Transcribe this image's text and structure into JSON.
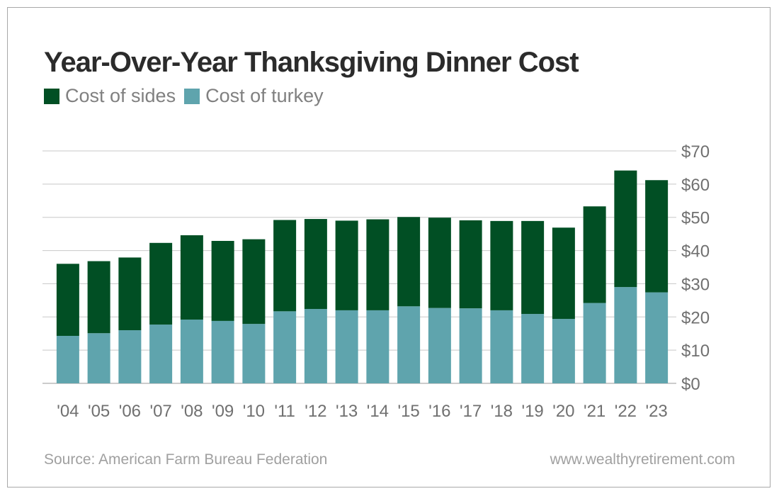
{
  "chart_data": {
    "type": "bar",
    "stacked": true,
    "title": "Year-Over-Year Thanksgiving Dinner Cost",
    "categories": [
      "'04",
      "'05",
      "'06",
      "'07",
      "'08",
      "'09",
      "'10",
      "'11",
      "'12",
      "'13",
      "'14",
      "'15",
      "'16",
      "'17",
      "'18",
      "'19",
      "'20",
      "'21",
      "'22",
      "'23"
    ],
    "series": [
      {
        "name": "Cost of turkey",
        "color": "#5fa4ad",
        "values": [
          14.3,
          15.1,
          16.0,
          17.7,
          19.2,
          18.8,
          17.9,
          21.7,
          22.4,
          22.0,
          22.0,
          23.2,
          22.7,
          22.6,
          22.0,
          20.9,
          19.4,
          24.2,
          29.0,
          27.4
        ]
      },
      {
        "name": "Cost of sides",
        "color": "#014f24",
        "values": [
          21.7,
          21.7,
          21.9,
          24.6,
          25.4,
          24.1,
          25.5,
          27.5,
          27.1,
          27.0,
          27.4,
          26.9,
          27.2,
          26.5,
          26.9,
          28.0,
          27.5,
          29.1,
          35.1,
          33.8
        ]
      }
    ],
    "legend_order": [
      "Cost of sides",
      "Cost of turkey"
    ],
    "ylim": [
      0,
      70
    ],
    "yticks": [
      "$0",
      "$10",
      "$20",
      "$30",
      "$40",
      "$50",
      "$60",
      "$70"
    ],
    "yaxis_position": "right",
    "grid": true,
    "legend_placement": "top-left"
  },
  "footer": {
    "source": "Source: American Farm Bureau Federation",
    "website": "www.wealthyretirement.com"
  }
}
